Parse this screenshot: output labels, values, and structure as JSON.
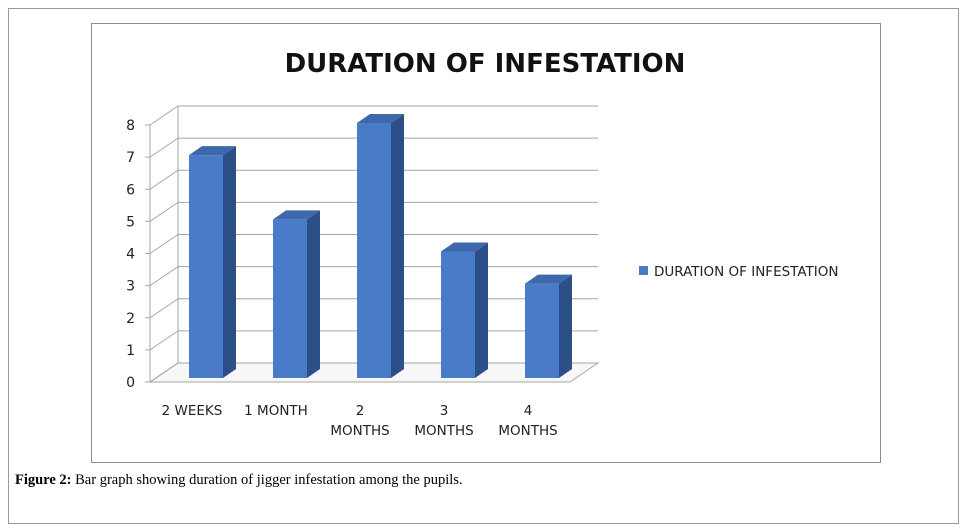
{
  "figure_caption": {
    "label": "Figure 2:",
    "text": " Bar graph showing duration of jigger infestation among the pupils."
  },
  "chart_data": {
    "type": "bar",
    "title": "DURATION OF INFESTATION",
    "categories": [
      [
        "2 WEEKS"
      ],
      [
        "1 MONTH"
      ],
      [
        "2",
        "MONTHS"
      ],
      [
        "3",
        "MONTHS"
      ],
      [
        "4",
        "MONTHS"
      ]
    ],
    "series": [
      {
        "name": "DURATION OF INFESTATION",
        "values": [
          7,
          5,
          8,
          4,
          3
        ],
        "color": "#4a7bc8"
      }
    ],
    "ylim": [
      0,
      8
    ],
    "yticks": [
      0,
      1,
      2,
      3,
      4,
      5,
      6,
      7,
      8
    ],
    "grid": true,
    "style": "3d-column",
    "legend_position": "right"
  }
}
